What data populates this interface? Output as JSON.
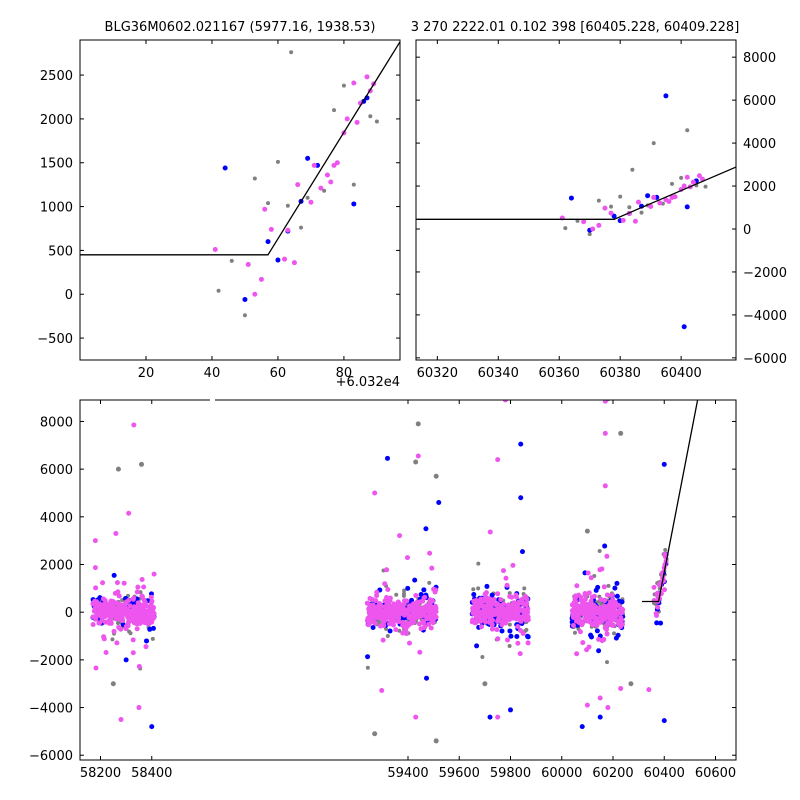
{
  "chart_data": [
    {
      "type": "scatter",
      "title": "BLG36M0602.021167 (5977.16, 1938.53)",
      "x_offset_label": "+6.032e4",
      "xlim": [
        0,
        97
      ],
      "ylim": [
        -750,
        2900
      ],
      "xticks": [
        "20",
        "40",
        "60",
        "80"
      ],
      "xtick_values": [
        20,
        40,
        60,
        80
      ],
      "yticks": [
        "−500",
        "0",
        "500",
        "1000",
        "1500",
        "2000",
        "2500"
      ],
      "ytick_values": [
        -500,
        0,
        500,
        1000,
        1500,
        2000,
        2500
      ],
      "model_line": {
        "x": [
          0,
          57,
          97
        ],
        "y": [
          450,
          450,
          2880
        ]
      },
      "series": [
        {
          "color": "#808080",
          "points": [
            [
              42,
              40
            ],
            [
              46,
              380
            ],
            [
              50,
              -240
            ],
            [
              53,
              1320
            ],
            [
              57,
              1040
            ],
            [
              60,
              1510
            ],
            [
              63,
              1010
            ],
            [
              64,
              2760
            ],
            [
              67,
              760
            ],
            [
              69,
              1100
            ],
            [
              71,
              1470
            ],
            [
              74,
              1180
            ],
            [
              77,
              2100
            ],
            [
              80,
              2380
            ],
            [
              83,
              1250
            ],
            [
              88,
              2030
            ],
            [
              90,
              1970
            ]
          ]
        },
        {
          "color": "#0000ff",
          "points": [
            [
              44,
              1440
            ],
            [
              50,
              -60
            ],
            [
              57,
              600
            ],
            [
              60,
              390
            ],
            [
              63,
              720
            ],
            [
              67,
              1060
            ],
            [
              69,
              1550
            ],
            [
              72,
              1470
            ],
            [
              83,
              1030
            ],
            [
              86,
              2200
            ],
            [
              87,
              2240
            ]
          ]
        },
        {
          "color": "#ee55ee",
          "points": [
            [
              41,
              510
            ],
            [
              51,
              340
            ],
            [
              53,
              0
            ],
            [
              55,
              170
            ],
            [
              56,
              970
            ],
            [
              58,
              740
            ],
            [
              62,
              400
            ],
            [
              63,
              730
            ],
            [
              65,
              360
            ],
            [
              66,
              1250
            ],
            [
              70,
              1050
            ],
            [
              71,
              1470
            ],
            [
              73,
              1210
            ],
            [
              75,
              1360
            ],
            [
              76,
              1280
            ],
            [
              77,
              1470
            ],
            [
              78,
              1500
            ],
            [
              80,
              1840
            ],
            [
              81,
              2000
            ],
            [
              83,
              2410
            ],
            [
              84,
              1960
            ],
            [
              85,
              2180
            ],
            [
              87,
              2480
            ],
            [
              88,
              2320
            ],
            [
              89,
              2400
            ]
          ]
        }
      ]
    },
    {
      "type": "scatter",
      "title": "3 270 2222.01 0.102 398 [60405.228, 60409.228]",
      "xlim": [
        60313,
        60418
      ],
      "ylim": [
        -6100,
        8800
      ],
      "xticks": [
        "60320",
        "60340",
        "60360",
        "60380",
        "60400"
      ],
      "xtick_values": [
        60320,
        60340,
        60360,
        60380,
        60400
      ],
      "yticks": [
        "−6000",
        "−4000",
        "−2000",
        "0",
        "2000",
        "4000",
        "6000",
        "8000"
      ],
      "ytick_values": [
        -6000,
        -4000,
        -2000,
        0,
        2000,
        4000,
        6000,
        8000
      ],
      "yaxis_side": "right",
      "model_line": {
        "x": [
          60313,
          60378,
          60418
        ],
        "y": [
          450,
          450,
          2880
        ]
      },
      "series": [
        {
          "color": "#808080",
          "points": [
            [
              60362,
              40
            ],
            [
              60366,
              380
            ],
            [
              60370,
              -240
            ],
            [
              60373,
              1320
            ],
            [
              60377,
              1040
            ],
            [
              60380,
              1510
            ],
            [
              60383,
              1010
            ],
            [
              60384,
              2760
            ],
            [
              60387,
              760
            ],
            [
              60389,
              1100
            ],
            [
              60391,
              4000
            ],
            [
              60394,
              1180
            ],
            [
              60397,
              2100
            ],
            [
              60400,
              2380
            ],
            [
              60402,
              4600
            ],
            [
              60405,
              2030
            ],
            [
              60408,
              1970
            ]
          ]
        },
        {
          "color": "#0000ff",
          "points": [
            [
              60364,
              1440
            ],
            [
              60370,
              -60
            ],
            [
              60378,
              600
            ],
            [
              60380,
              390
            ],
            [
              60383,
              720
            ],
            [
              60387,
              1060
            ],
            [
              60389,
              1550
            ],
            [
              60392,
              1470
            ],
            [
              60395,
              6200
            ],
            [
              60401,
              -4550
            ],
            [
              60402,
              1030
            ],
            [
              60405,
              2240
            ]
          ]
        },
        {
          "color": "#ee55ee",
          "points": [
            [
              60361,
              510
            ],
            [
              60368,
              340
            ],
            [
              60371,
              0
            ],
            [
              60373,
              170
            ],
            [
              60375,
              970
            ],
            [
              60377,
              740
            ],
            [
              60381,
              400
            ],
            [
              60383,
              730
            ],
            [
              60385,
              360
            ],
            [
              60386,
              1250
            ],
            [
              60390,
              1050
            ],
            [
              60391,
              1470
            ],
            [
              60393,
              1210
            ],
            [
              60395,
              1360
            ],
            [
              60396,
              1280
            ],
            [
              60397,
              1470
            ],
            [
              60398,
              1500
            ],
            [
              60400,
              1840
            ],
            [
              60401,
              2000
            ],
            [
              60402,
              2410
            ],
            [
              60403,
              1960
            ],
            [
              60404,
              2180
            ],
            [
              60406,
              2480
            ],
            [
              60407,
              2320
            ]
          ]
        }
      ]
    },
    {
      "type": "scatter",
      "title": "",
      "xlim": [
        58120,
        60680
      ],
      "ylim": [
        -6200,
        8900
      ],
      "broken_xaxis_gap": [
        58410,
        58425
      ],
      "xticks": [
        "58200",
        "58400",
        "59400",
        "59600",
        "59800",
        "60000",
        "60200",
        "60400",
        "60600"
      ],
      "xtick_values": [
        58200,
        58400,
        59400,
        59600,
        59800,
        60000,
        60200,
        60400,
        60600
      ],
      "yticks": [
        "−6000",
        "−4000",
        "−2000",
        "0",
        "2000",
        "4000",
        "6000",
        "8000"
      ],
      "ytick_values": [
        -6000,
        -4000,
        -2000,
        0,
        2000,
        4000,
        6000,
        8000
      ],
      "model_line": {
        "x": [
          60313,
          60378,
          60530
        ],
        "y": [
          450,
          450,
          8900
        ]
      },
      "seasons": [
        {
          "x_range": [
            58170,
            58410
          ],
          "n_gray": 95,
          "n_blue": 55,
          "n_pink": 260
        },
        {
          "x_range": [
            59240,
            59510
          ],
          "n_gray": 105,
          "n_blue": 90,
          "n_pink": 290
        },
        {
          "x_range": [
            59650,
            59870
          ],
          "n_gray": 85,
          "n_blue": 95,
          "n_pink": 240
        },
        {
          "x_range": [
            60040,
            60240
          ],
          "n_gray": 95,
          "n_blue": 110,
          "n_pink": 260
        },
        {
          "x_range": [
            60360,
            60410
          ],
          "n_gray": 17,
          "n_blue": 12,
          "n_pink": 24
        }
      ],
      "outliers": [
        {
          "color": "#ee55ee",
          "points": [
            [
              58330,
              7850
            ],
            [
              58310,
              4150
            ],
            [
              58180,
              3000
            ],
            [
              58260,
              3300
            ],
            [
              58280,
              -4500
            ],
            [
              58350,
              -4000
            ],
            [
              59440,
              6550
            ],
            [
              59270,
              5000
            ],
            [
              59430,
              -4400
            ],
            [
              59780,
              8900
            ],
            [
              59750,
              6400
            ],
            [
              59750,
              -4400
            ],
            [
              60170,
              8850
            ],
            [
              60170,
              7500
            ],
            [
              60170,
              5300
            ],
            [
              60100,
              -3900
            ],
            [
              60150,
              -3600
            ],
            [
              60180,
              -4000
            ],
            [
              60230,
              -3200
            ],
            [
              60340,
              -3250
            ]
          ]
        },
        {
          "color": "#808080",
          "points": [
            [
              58270,
              6000
            ],
            [
              58360,
              6200
            ],
            [
              58250,
              -3000
            ],
            [
              59270,
              -5100
            ],
            [
              59440,
              7900
            ],
            [
              59430,
              6300
            ],
            [
              59510,
              5700
            ],
            [
              59510,
              -5400
            ],
            [
              59700,
              -3000
            ],
            [
              60100,
              3400
            ],
            [
              60180,
              8950
            ],
            [
              60230,
              7500
            ],
            [
              60270,
              -3000
            ]
          ]
        },
        {
          "color": "#0000ff",
          "points": [
            [
              58400,
              -4800
            ],
            [
              58300,
              -2000
            ],
            [
              59320,
              6450
            ],
            [
              59520,
              4600
            ],
            [
              59470,
              3500
            ],
            [
              59840,
              7050
            ],
            [
              59840,
              4800
            ],
            [
              59720,
              -4400
            ],
            [
              59800,
              -4100
            ],
            [
              60080,
              -4800
            ],
            [
              60150,
              -4400
            ],
            [
              60400,
              6200
            ],
            [
              60400,
              -4550
            ]
          ]
        }
      ]
    }
  ],
  "legend": []
}
